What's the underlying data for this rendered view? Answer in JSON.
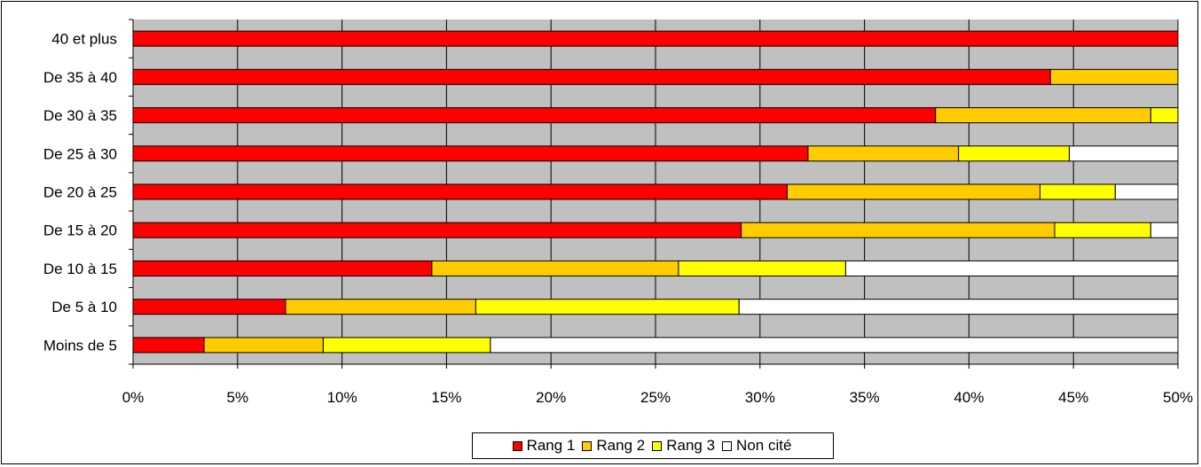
{
  "chart_data": {
    "type": "bar",
    "orientation": "horizontal",
    "stacked": true,
    "categories": [
      "40 et plus",
      "De 35 à 40",
      "De 30 à 35",
      "De 25 à 30",
      "De 20 à 25",
      "De 15 à 20",
      "De 10 à 15",
      "De 5 à 10",
      "Moins de 5"
    ],
    "series": [
      {
        "name": "Rang 1",
        "color": "#ff0000",
        "values": [
          50,
          43.9,
          38.4,
          32.3,
          31.3,
          29.1,
          14.3,
          7.3,
          3.4
        ]
      },
      {
        "name": "Rang 2",
        "color": "#ffcc00",
        "values": [
          0,
          6.1,
          10.3,
          7.2,
          12.1,
          15.0,
          11.8,
          9.1,
          5.7
        ]
      },
      {
        "name": "Rang 3",
        "color": "#ffff00",
        "values": [
          0,
          0,
          1.3,
          5.3,
          3.6,
          4.6,
          8.0,
          12.6,
          8.0
        ]
      },
      {
        "name": "Non cité",
        "color": "#ffffff",
        "values": [
          0,
          0,
          0,
          5.2,
          3.0,
          1.3,
          15.9,
          21.0,
          32.9
        ]
      }
    ],
    "xlim": [
      0,
      50
    ],
    "xticks": [
      "0%",
      "5%",
      "10%",
      "15%",
      "20%",
      "25%",
      "30%",
      "35%",
      "40%",
      "45%",
      "50%"
    ],
    "grid": true,
    "plot_background": "#c0c0c0",
    "legend_position": "bottom"
  }
}
